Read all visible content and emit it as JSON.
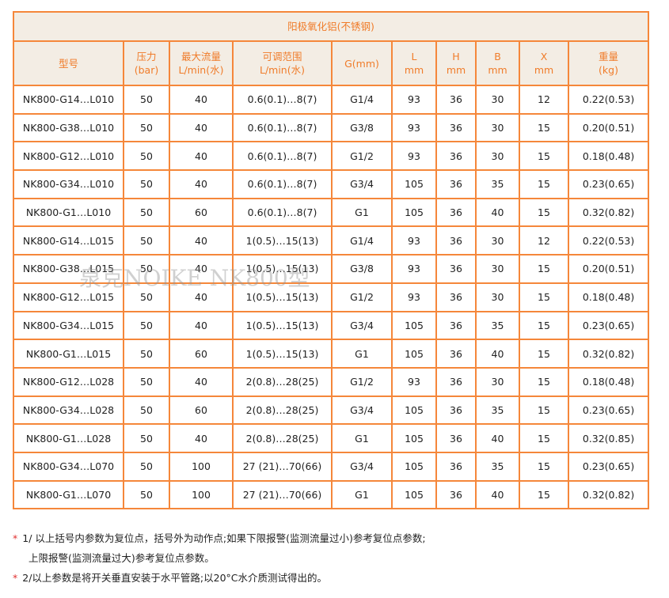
{
  "table": {
    "title": "阳极氧化铝(不锈钢)",
    "headers": [
      [
        "型号"
      ],
      [
        "压力",
        "(bar)"
      ],
      [
        "最大流量",
        "L/min(水)"
      ],
      [
        "可调范围",
        "L/min(水)"
      ],
      [
        "G(mm)"
      ],
      [
        "L",
        "mm"
      ],
      [
        "H",
        "mm"
      ],
      [
        "B",
        "mm"
      ],
      [
        "X",
        "mm"
      ],
      [
        "重量",
        "(kg)"
      ]
    ],
    "rows": [
      [
        "NK800-G14…L010",
        "50",
        "40",
        "0.6(0.1)…8(7)",
        "G1/4",
        "93",
        "36",
        "30",
        "12",
        "0.22(0.53)"
      ],
      [
        "NK800-G38…L010",
        "50",
        "40",
        "0.6(0.1)…8(7)",
        "G3/8",
        "93",
        "36",
        "30",
        "15",
        "0.20(0.51)"
      ],
      [
        "NK800-G12…L010",
        "50",
        "40",
        "0.6(0.1)…8(7)",
        "G1/2",
        "93",
        "36",
        "30",
        "15",
        "0.18(0.48)"
      ],
      [
        "NK800-G34…L010",
        "50",
        "40",
        "0.6(0.1)…8(7)",
        "G3/4",
        "105",
        "36",
        "35",
        "15",
        "0.23(0.65)"
      ],
      [
        "NK800-G1…L010",
        "50",
        "60",
        "0.6(0.1)…8(7)",
        "G1",
        "105",
        "36",
        "40",
        "15",
        "0.32(0.82)"
      ],
      [
        "NK800-G14…L015",
        "50",
        "40",
        "1(0.5)…15(13)",
        "G1/4",
        "93",
        "36",
        "30",
        "12",
        "0.22(0.53)"
      ],
      [
        "NK800-G38…L015",
        "50",
        "40",
        "1(0.5)…15(13)",
        "G3/8",
        "93",
        "36",
        "30",
        "15",
        "0.20(0.51)"
      ],
      [
        "NK800-G12…L015",
        "50",
        "40",
        "1(0.5)…15(13)",
        "G1/2",
        "93",
        "36",
        "30",
        "15",
        "0.18(0.48)"
      ],
      [
        "NK800-G34…L015",
        "50",
        "40",
        "1(0.5)…15(13)",
        "G3/4",
        "105",
        "36",
        "35",
        "15",
        "0.23(0.65)"
      ],
      [
        "NK800-G1…L015",
        "50",
        "60",
        "1(0.5)…15(13)",
        "G1",
        "105",
        "36",
        "40",
        "15",
        "0.32(0.82)"
      ],
      [
        "NK800-G12…L028",
        "50",
        "40",
        "2(0.8)…28(25)",
        "G1/2",
        "93",
        "36",
        "30",
        "15",
        "0.18(0.48)"
      ],
      [
        "NK800-G34…L028",
        "50",
        "60",
        "2(0.8)…28(25)",
        "G3/4",
        "105",
        "36",
        "35",
        "15",
        "0.23(0.65)"
      ],
      [
        "NK800-G1…L028",
        "50",
        "40",
        "2(0.8)…28(25)",
        "G1",
        "105",
        "36",
        "40",
        "15",
        "0.32(0.85)"
      ],
      [
        "NK800-G34…L070",
        "50",
        "100",
        "27 (21)…70(66)",
        "G3/4",
        "105",
        "36",
        "35",
        "15",
        "0.23(0.65)"
      ],
      [
        "NK800-G1…L070",
        "50",
        "100",
        "27 (21)…70(66)",
        "G1",
        "105",
        "36",
        "40",
        "15",
        "0.32(0.82)"
      ]
    ]
  },
  "notes": {
    "star": "*",
    "line1": "1/ 以上括号内参数为复位点，括号外为动作点;如果下限报警(监测流量过小)参考复位点参数;",
    "line2": "上限报警(监测流量过大)参考复位点参数。",
    "line3": "2/以上参数是将开关垂直安装于水平管路;以20°C水介质测试得出的。"
  },
  "watermark": "泉克NOIKE NK800型",
  "colors": {
    "border": "#f5873a",
    "header_text": "#f07c2a",
    "header_bg": "#f3ede4",
    "star": "#e03030"
  }
}
